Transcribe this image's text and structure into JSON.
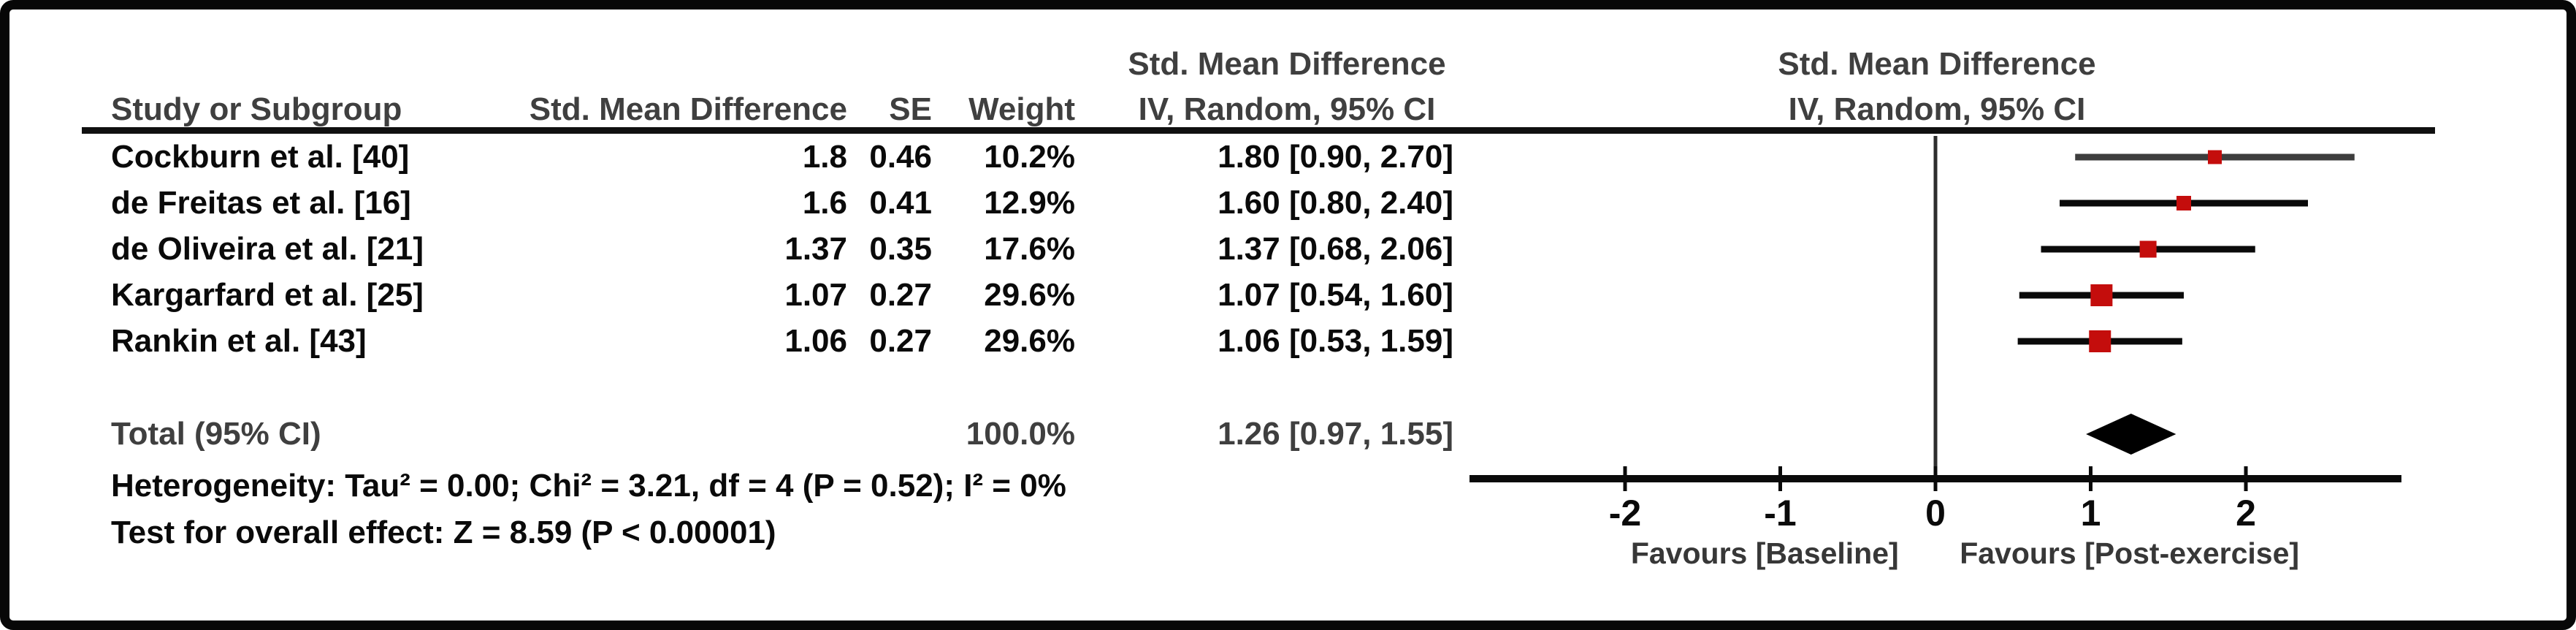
{
  "figure": {
    "background": "#ffffff",
    "border_color": "#070707",
    "accent_red": "#c40d0c",
    "bold_gray": "#3f3f3f"
  },
  "table": {
    "header": {
      "study": "Study or Subgroup",
      "smd": "Std. Mean Difference",
      "se": "SE",
      "weight": "Weight",
      "ci_top": "Std. Mean Difference",
      "ci": "IV, Random, 95% CI",
      "plot_top": "Std. Mean Difference",
      "plot_ci": "IV, Random, 95% CI"
    },
    "rows": [
      {
        "study": "Cockburn et al. [40]",
        "smd": "1.8",
        "se": "0.46",
        "weight": "10.2%",
        "ci": "1.80 [0.90, 2.70]"
      },
      {
        "study": "de Freitas et al. [16]",
        "smd": "1.6",
        "se": "0.41",
        "weight": "12.9%",
        "ci": "1.60 [0.80, 2.40]"
      },
      {
        "study": "de Oliveira et al. [21]",
        "smd": "1.37",
        "se": "0.35",
        "weight": "17.6%",
        "ci": "1.37 [0.68, 2.06]"
      },
      {
        "study": "Kargarfard et al. [25]",
        "smd": "1.07",
        "se": "0.27",
        "weight": "29.6%",
        "ci": "1.07 [0.54, 1.60]"
      },
      {
        "study": "Rankin et al. [43]",
        "smd": "1.06",
        "se": "0.27",
        "weight": "29.6%",
        "ci": "1.06 [0.53, 1.59]"
      }
    ],
    "total": {
      "label": "Total (95% CI)",
      "weight": "100.0%",
      "ci": "1.26 [0.97, 1.55]"
    },
    "heterogeneity_line": "Heterogeneity: Tau² = 0.00; Chi² = 3.21, df = 4 (P = 0.52); I² = 0%",
    "overall_effect_line": "Test for overall effect: Z = 8.59 (P < 0.00001)"
  },
  "chart_data": {
    "type": "forest",
    "title": "Std. Mean Difference IV, Random, 95% CI",
    "x_axis": {
      "min": -3,
      "max": 3,
      "ticks": [
        -2,
        -1,
        0,
        1,
        2
      ],
      "zero_line": 0,
      "label_left": "Favours [Baseline]",
      "label_right": "Favours [Post-exercise]",
      "label_left_center_value": -1.1,
      "label_right_center_value": 1.25
    },
    "studies": [
      {
        "name": "Cockburn et al. [40]",
        "smd": 1.8,
        "se": 0.46,
        "weight_pct": 10.2,
        "ci_low": 0.9,
        "ci_high": 2.7
      },
      {
        "name": "de Freitas et al. [16]",
        "smd": 1.6,
        "se": 0.41,
        "weight_pct": 12.9,
        "ci_low": 0.8,
        "ci_high": 2.4
      },
      {
        "name": "de Oliveira et al. [21]",
        "smd": 1.37,
        "se": 0.35,
        "weight_pct": 17.6,
        "ci_low": 0.68,
        "ci_high": 2.06
      },
      {
        "name": "Kargarfard et al. [25]",
        "smd": 1.07,
        "se": 0.27,
        "weight_pct": 29.6,
        "ci_low": 0.54,
        "ci_high": 1.6
      },
      {
        "name": "Rankin et al. [43]",
        "smd": 1.06,
        "se": 0.27,
        "weight_pct": 29.6,
        "ci_low": 0.53,
        "ci_high": 1.59
      }
    ],
    "total": {
      "label": "Total (95% CI)",
      "weight_pct": 100.0,
      "smd": 1.26,
      "ci_low": 0.97,
      "ci_high": 1.55
    },
    "heterogeneity": "Tau² = 0.00; Chi² = 3.21, df = 4 (P = 0.52); I² = 0%",
    "overall_effect": "Z = 8.59 (P < 0.00001)",
    "marker_color": "#c40d0c",
    "diamond_color": "#000000",
    "line_color": "#0a0a0a",
    "first_row_line_color": "#3d3d3d",
    "zero_line_color": "#2e2e2e",
    "legend_position": "none",
    "grid": false
  }
}
